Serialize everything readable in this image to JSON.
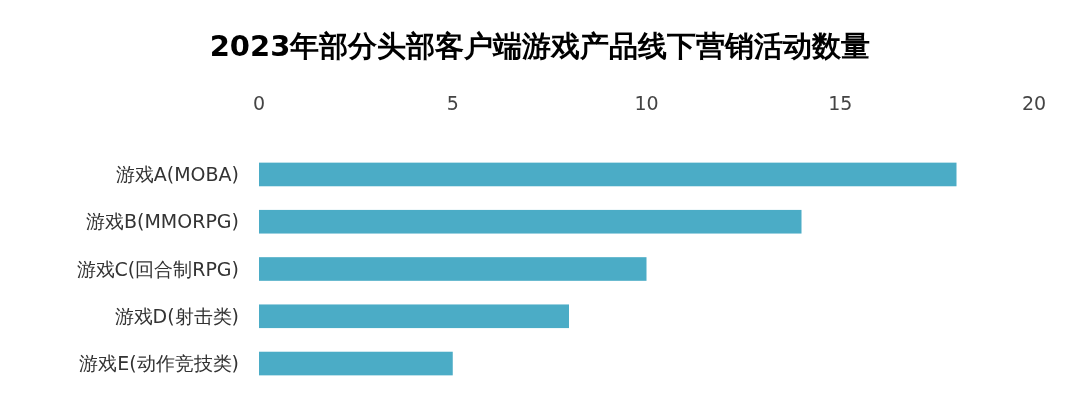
{
  "chart_data": {
    "type": "bar",
    "orientation": "horizontal",
    "title": "2023年部分头部客户端游戏产品线下营销活动数量",
    "categories": [
      "游戏A(MOBA)",
      "游戏B(MMORPG)",
      "游戏C(回合制RPG)",
      "游戏D(射击类)",
      "游戏E(动作竞技类)"
    ],
    "values": [
      18,
      14,
      10,
      8,
      5
    ],
    "color": "#4bacc6",
    "xlim": [
      0,
      20
    ],
    "xticks": [
      0,
      5,
      10,
      15,
      20
    ],
    "grid": false
  }
}
